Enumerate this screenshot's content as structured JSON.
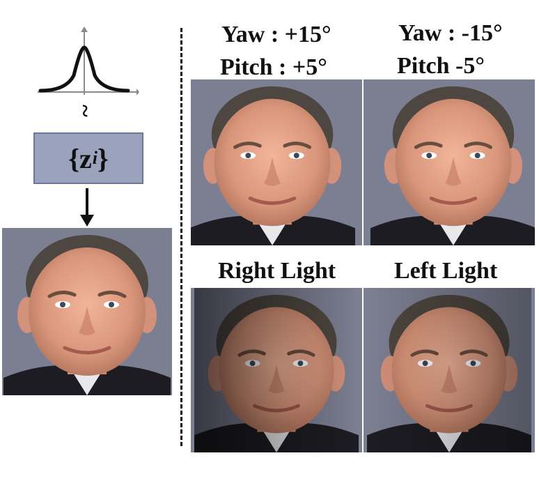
{
  "left": {
    "distribution_icon": "gaussian-curve-icon",
    "tilde": "~",
    "latent": {
      "brace_open": "{",
      "var": "z",
      "sub": "i",
      "brace_close": "}"
    },
    "arrow_icon": "down-arrow-icon"
  },
  "panels": [
    {
      "line1": "Yaw : +15°",
      "line2": "Pitch : +5°"
    },
    {
      "line1": "Yaw : -15°",
      "line2": "Pitch -5°"
    },
    {
      "line1": "Right Light"
    },
    {
      "line1": "Left Light"
    }
  ],
  "colors": {
    "latent_box": "#9aa3bb",
    "latent_border": "#6b7893",
    "curve_axis": "#8a8a8a"
  }
}
